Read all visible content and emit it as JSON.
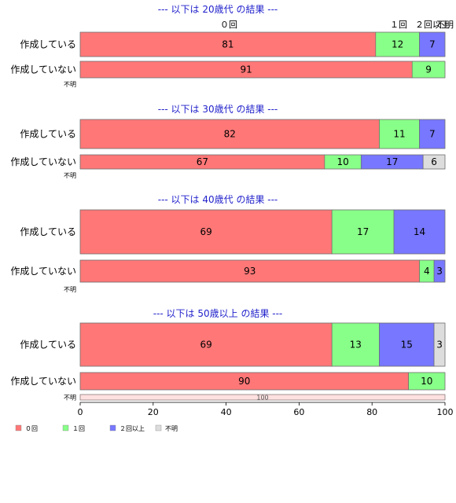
{
  "colors": {
    "c0": "#ff7777",
    "c1": "#88ff88",
    "c2": "#7777ff",
    "c3": "#dddddd",
    "title": "#2222cc"
  },
  "chart_data": {
    "type": "bar",
    "orientation": "horizontal",
    "stacked": true,
    "xlim": [
      0,
      100
    ],
    "xticks": [
      "0",
      "20",
      "40",
      "60",
      "80",
      "100"
    ],
    "category_headers": [
      "０回",
      "１回",
      "２回以上",
      "不明"
    ],
    "legend": {
      "placement": "bottom-left",
      "entries": [
        "０回",
        "１回",
        "２回以上",
        "不明"
      ]
    },
    "panels": [
      {
        "title": "--- 以下は 20歳代 の結果 ---",
        "rows": [
          {
            "label": "作成している",
            "values": [
              81,
              12,
              7,
              0
            ]
          },
          {
            "label": "作成していない",
            "values": [
              91,
              9,
              0,
              0
            ]
          },
          {
            "label": "不明",
            "values": [
              0,
              0,
              0,
              0
            ]
          }
        ]
      },
      {
        "title": "--- 以下は 30歳代 の結果 ---",
        "rows": [
          {
            "label": "作成している",
            "values": [
              82,
              11,
              7,
              0
            ]
          },
          {
            "label": "作成していない",
            "values": [
              67,
              10,
              17,
              6
            ]
          },
          {
            "label": "不明",
            "values": [
              0,
              0,
              0,
              0
            ]
          }
        ]
      },
      {
        "title": "--- 以下は 40歳代 の結果 ---",
        "rows": [
          {
            "label": "作成している",
            "values": [
              69,
              17,
              14,
              0
            ]
          },
          {
            "label": "作成していない",
            "values": [
              93,
              4,
              3,
              0
            ]
          },
          {
            "label": "不明",
            "values": [
              0,
              0,
              0,
              0
            ]
          }
        ]
      },
      {
        "title": "--- 以下は 50歳以上 の結果 ---",
        "rows": [
          {
            "label": "作成している",
            "values": [
              69,
              13,
              15,
              3
            ]
          },
          {
            "label": "作成していない",
            "values": [
              90,
              10,
              0,
              0
            ]
          },
          {
            "label": "不明",
            "values": [
              100,
              0,
              0,
              0
            ]
          }
        ]
      }
    ]
  }
}
